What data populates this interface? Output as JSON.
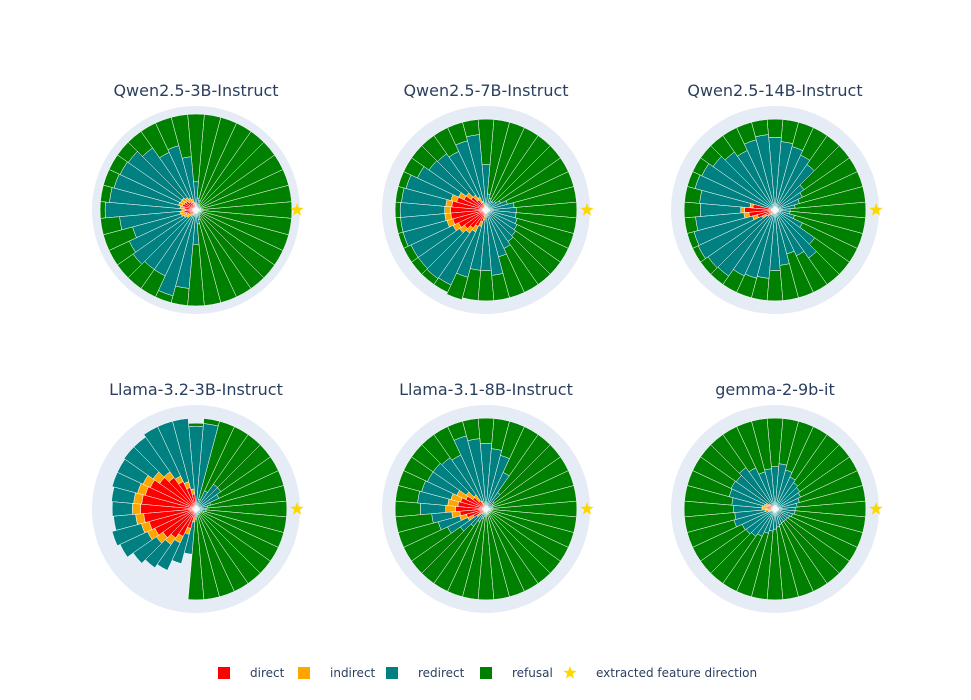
{
  "chart_data": {
    "type": "polar-stacked-bar",
    "angular_bins": 36,
    "radial_range": [
      0,
      1
    ],
    "grid": false,
    "legend_position": "bottom",
    "colors": {
      "direct": "#ff0000",
      "indirect": "#ffa500",
      "redirect": "#008080",
      "refusal": "#008000",
      "feature": "#ffd700",
      "polar_background": "#e5ecf6",
      "bar_edge": "#ffffff"
    },
    "series_order": [
      "direct",
      "indirect",
      "redirect",
      "refusal"
    ],
    "legend": [
      {
        "key": "direct",
        "label": "direct",
        "symbol": "square"
      },
      {
        "key": "indirect",
        "label": "indirect",
        "symbol": "square"
      },
      {
        "key": "redirect",
        "label": "redirect",
        "symbol": "square"
      },
      {
        "key": "refusal",
        "label": "refusal",
        "symbol": "square"
      },
      {
        "key": "feature",
        "label": "extracted feature direction",
        "symbol": "star"
      }
    ],
    "panels": [
      {
        "title": "Qwen2.5-3B-Instruct",
        "feature_direction_deg": 0,
        "direct": [
          0,
          0,
          0,
          0,
          0,
          0,
          0,
          0,
          0,
          0.03,
          0.04,
          0.06,
          0.08,
          0.1,
          0.12,
          0.13,
          0.14,
          0.12,
          0.1,
          0.12,
          0.1,
          0.08,
          0.06,
          0.04,
          0.03,
          0,
          0,
          0,
          0,
          0,
          0,
          0,
          0,
          0,
          0,
          0
        ],
        "indirect": [
          0,
          0,
          0,
          0,
          0,
          0,
          0,
          0,
          0,
          0.03,
          0.04,
          0.05,
          0.05,
          0.05,
          0.05,
          0.04,
          0.04,
          0.04,
          0.04,
          0.04,
          0.05,
          0.05,
          0.05,
          0.04,
          0.03,
          0,
          0,
          0,
          0,
          0,
          0,
          0,
          0,
          0,
          0,
          0
        ],
        "redirect": [
          0.05,
          0.05,
          0.05,
          0.05,
          0.05,
          0.06,
          0.06,
          0.1,
          0.12,
          0.22,
          0.45,
          0.55,
          0.5,
          0.6,
          0.65,
          0.66,
          0.66,
          0.7,
          0.76,
          0.6,
          0.5,
          0.6,
          0.65,
          0.64,
          0.66,
          0.88,
          0.78,
          0.34,
          0.14,
          0.1,
          0.07,
          0.06,
          0.05,
          0.05,
          0.05,
          0.05
        ],
        "refusal": [
          0.9,
          0.9,
          0.9,
          0.9,
          0.9,
          0.89,
          0.89,
          0.85,
          0.83,
          0.67,
          0.42,
          0.29,
          0.32,
          0.2,
          0.13,
          0.12,
          0.11,
          0.09,
          0.05,
          0.19,
          0.3,
          0.22,
          0.19,
          0.23,
          0.23,
          0.07,
          0.17,
          0.61,
          0.81,
          0.85,
          0.88,
          0.89,
          0.9,
          0.9,
          0.9,
          0.9
        ]
      },
      {
        "title": "Qwen2.5-7B-Instruct",
        "feature_direction_deg": 0,
        "direct": [
          0,
          0,
          0,
          0,
          0,
          0,
          0,
          0,
          0,
          0,
          0.02,
          0.04,
          0.08,
          0.12,
          0.18,
          0.24,
          0.3,
          0.34,
          0.35,
          0.35,
          0.34,
          0.3,
          0.26,
          0.22,
          0.18,
          0.12,
          0.06,
          0.02,
          0,
          0,
          0,
          0,
          0,
          0,
          0,
          0
        ],
        "indirect": [
          0,
          0,
          0,
          0,
          0,
          0,
          0,
          0,
          0,
          0,
          0.03,
          0.05,
          0.06,
          0.06,
          0.06,
          0.06,
          0.06,
          0.06,
          0.06,
          0.06,
          0.06,
          0.06,
          0.06,
          0.06,
          0.06,
          0.05,
          0.04,
          0.03,
          0,
          0,
          0,
          0,
          0,
          0,
          0,
          0
        ],
        "redirect": [
          0.3,
          0.28,
          0.22,
          0.16,
          0.12,
          0.1,
          0.1,
          0.12,
          0.16,
          0.45,
          0.7,
          0.62,
          0.5,
          0.5,
          0.45,
          0.45,
          0.46,
          0.44,
          0.44,
          0.44,
          0.45,
          0.46,
          0.5,
          0.55,
          0.58,
          0.52,
          0.5,
          0.55,
          0.65,
          0.48,
          0.42,
          0.38,
          0.36,
          0.34,
          0.32,
          0.3
        ],
        "refusal": [
          0.6,
          0.62,
          0.68,
          0.74,
          0.78,
          0.8,
          0.8,
          0.78,
          0.74,
          0.45,
          0.15,
          0.19,
          0.26,
          0.22,
          0.21,
          0.15,
          0.08,
          0.06,
          0.05,
          0.05,
          0.05,
          0.08,
          0.08,
          0.07,
          0.08,
          0.23,
          0.3,
          0.3,
          0.25,
          0.42,
          0.48,
          0.52,
          0.54,
          0.56,
          0.58,
          0.6
        ]
      },
      {
        "title": "Qwen2.5-14B-Instruct",
        "feature_direction_deg": 0,
        "direct": [
          0,
          0,
          0,
          0,
          0,
          0,
          0,
          0,
          0,
          0,
          0,
          0,
          0,
          0,
          0,
          0,
          0,
          0.22,
          0.3,
          0.26,
          0.18,
          0.1,
          0.05,
          0.03,
          0,
          0,
          0,
          0,
          0,
          0,
          0,
          0,
          0,
          0,
          0,
          0
        ],
        "indirect": [
          0,
          0,
          0,
          0,
          0,
          0,
          0,
          0,
          0,
          0,
          0,
          0,
          0,
          0,
          0,
          0,
          0,
          0.03,
          0.04,
          0.05,
          0.05,
          0.04,
          0.04,
          0.03,
          0,
          0,
          0,
          0,
          0,
          0,
          0,
          0,
          0,
          0,
          0,
          0
        ],
        "redirect": [
          0.15,
          0.2,
          0.25,
          0.3,
          0.35,
          0.55,
          0.6,
          0.65,
          0.68,
          0.72,
          0.75,
          0.72,
          0.65,
          0.7,
          0.75,
          0.8,
          0.82,
          0.5,
          0.4,
          0.48,
          0.6,
          0.7,
          0.72,
          0.74,
          0.72,
          0.7,
          0.68,
          0.6,
          0.55,
          0.45,
          0.5,
          0.58,
          0.48,
          0.3,
          0.2,
          0.15
        ],
        "refusal": [
          0.75,
          0.7,
          0.65,
          0.6,
          0.55,
          0.35,
          0.3,
          0.25,
          0.22,
          0.18,
          0.15,
          0.18,
          0.25,
          0.2,
          0.15,
          0.1,
          0.08,
          0.15,
          0.16,
          0.11,
          0.07,
          0.06,
          0.09,
          0.1,
          0.18,
          0.2,
          0.22,
          0.3,
          0.35,
          0.45,
          0.4,
          0.32,
          0.42,
          0.6,
          0.7,
          0.75
        ]
      },
      {
        "title": "Llama-3.2-3B-Instruct",
        "feature_direction_deg": 0,
        "direct": [
          0,
          0,
          0,
          0,
          0,
          0,
          0,
          0,
          0,
          0,
          0.15,
          0.22,
          0.3,
          0.38,
          0.44,
          0.5,
          0.52,
          0.54,
          0.55,
          0.52,
          0.48,
          0.45,
          0.4,
          0.35,
          0.3,
          0.2,
          0.08,
          0,
          0,
          0,
          0,
          0,
          0,
          0,
          0,
          0
        ],
        "indirect": [
          0,
          0,
          0,
          0,
          0,
          0,
          0,
          0,
          0,
          0,
          0.05,
          0.06,
          0.06,
          0.07,
          0.08,
          0.08,
          0.08,
          0.08,
          0.08,
          0.08,
          0.08,
          0.08,
          0.08,
          0.08,
          0.07,
          0.06,
          0.05,
          0,
          0,
          0,
          0,
          0,
          0,
          0,
          0,
          0
        ],
        "redirect": [
          0.1,
          0.12,
          0.15,
          0.25,
          0.3,
          0.3,
          0.2,
          0.1,
          0.85,
          0.82,
          0.7,
          0.62,
          0.54,
          0.42,
          0.35,
          0.28,
          0.26,
          0.22,
          0.2,
          0.22,
          0.3,
          0.3,
          0.28,
          0.28,
          0.3,
          0.3,
          0.32,
          0.1,
          0.08,
          0.06,
          0.05,
          0.05,
          0.05,
          0.06,
          0.08,
          0.1
        ],
        "refusal": [
          0.8,
          0.78,
          0.75,
          0.65,
          0.6,
          0.6,
          0.7,
          0.8,
          0.05,
          0.03,
          0,
          0,
          0,
          0,
          0,
          0,
          0,
          0,
          0,
          0,
          0,
          0,
          0,
          0,
          0,
          0,
          0,
          0.8,
          0.82,
          0.84,
          0.85,
          0.85,
          0.85,
          0.84,
          0.82,
          0.8
        ]
      },
      {
        "title": "Llama-3.1-8B-Instruct",
        "feature_direction_deg": 0,
        "direct": [
          0,
          0,
          0,
          0,
          0,
          0,
          0,
          0,
          0,
          0,
          0,
          0,
          0.04,
          0.1,
          0.16,
          0.22,
          0.26,
          0.28,
          0.3,
          0.26,
          0.2,
          0.14,
          0.06,
          0.02,
          0,
          0,
          0,
          0,
          0,
          0,
          0,
          0,
          0,
          0,
          0,
          0
        ],
        "indirect": [
          0,
          0,
          0,
          0,
          0,
          0,
          0,
          0,
          0,
          0,
          0,
          0,
          0.05,
          0.07,
          0.08,
          0.1,
          0.1,
          0.1,
          0.1,
          0.08,
          0.07,
          0.06,
          0.05,
          0.04,
          0,
          0,
          0,
          0,
          0,
          0,
          0,
          0,
          0,
          0,
          0,
          0
        ],
        "redirect": [
          0.05,
          0.06,
          0.07,
          0.08,
          0.1,
          0.2,
          0.4,
          0.55,
          0.6,
          0.65,
          0.7,
          0.75,
          0.5,
          0.45,
          0.4,
          0.32,
          0.3,
          0.3,
          0.25,
          0.2,
          0.22,
          0.22,
          0.2,
          0.15,
          0.14,
          0.1,
          0.08,
          0.05,
          0.05,
          0.05,
          0.05,
          0.05,
          0.05,
          0.05,
          0.05,
          0.05
        ],
        "refusal": [
          0.85,
          0.84,
          0.83,
          0.82,
          0.8,
          0.7,
          0.5,
          0.35,
          0.3,
          0.25,
          0.2,
          0.15,
          0.31,
          0.28,
          0.26,
          0.26,
          0.24,
          0.22,
          0.25,
          0.36,
          0.41,
          0.48,
          0.59,
          0.69,
          0.76,
          0.8,
          0.82,
          0.85,
          0.85,
          0.85,
          0.85,
          0.85,
          0.85,
          0.85,
          0.85,
          0.85
        ]
      },
      {
        "title": "gemma-2-9b-it",
        "feature_direction_deg": 0,
        "direct": [
          0,
          0,
          0,
          0,
          0,
          0,
          0,
          0,
          0,
          0,
          0,
          0,
          0,
          0,
          0.04,
          0.06,
          0.07,
          0.08,
          0.08,
          0.06,
          0.04,
          0,
          0,
          0,
          0,
          0,
          0,
          0,
          0,
          0,
          0,
          0,
          0,
          0,
          0,
          0
        ],
        "indirect": [
          0,
          0,
          0,
          0,
          0,
          0,
          0,
          0,
          0,
          0,
          0,
          0,
          0,
          0,
          0.03,
          0.04,
          0.04,
          0.05,
          0.05,
          0.04,
          0.03,
          0,
          0,
          0,
          0,
          0,
          0,
          0,
          0,
          0,
          0,
          0,
          0,
          0,
          0,
          0
        ],
        "redirect": [
          0.2,
          0.22,
          0.25,
          0.28,
          0.3,
          0.32,
          0.35,
          0.4,
          0.45,
          0.42,
          0.4,
          0.38,
          0.45,
          0.5,
          0.4,
          0.38,
          0.36,
          0.3,
          0.28,
          0.3,
          0.35,
          0.36,
          0.35,
          0.33,
          0.3,
          0.25,
          0.22,
          0.2,
          0.18,
          0.16,
          0.15,
          0.15,
          0.15,
          0.16,
          0.18,
          0.2
        ],
        "refusal": [
          0.7,
          0.68,
          0.65,
          0.62,
          0.6,
          0.58,
          0.55,
          0.5,
          0.45,
          0.48,
          0.5,
          0.52,
          0.45,
          0.4,
          0.43,
          0.42,
          0.43,
          0.47,
          0.49,
          0.5,
          0.48,
          0.54,
          0.55,
          0.57,
          0.6,
          0.65,
          0.68,
          0.7,
          0.72,
          0.74,
          0.75,
          0.75,
          0.75,
          0.74,
          0.72,
          0.7
        ]
      }
    ]
  }
}
